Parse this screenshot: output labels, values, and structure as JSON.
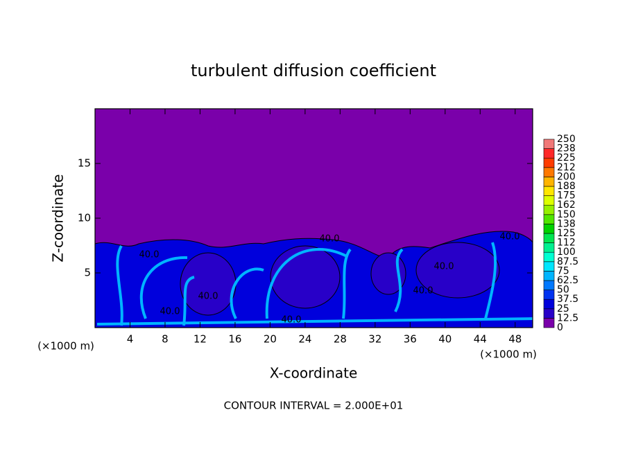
{
  "chart_data": {
    "type": "contour",
    "title": "turbulent diffusion coefficient",
    "xlabel": "X-coordinate",
    "ylabel": "Z-coordinate",
    "x_unit_label": "(×1000 m)",
    "y_unit_label": "(×1000 m)",
    "footer": "CONTOUR INTERVAL = 2.000E+01",
    "xlim": [
      0,
      50
    ],
    "ylim": [
      0,
      20
    ],
    "xticks": [
      4,
      8,
      12,
      16,
      20,
      24,
      28,
      32,
      36,
      40,
      44,
      48
    ],
    "yticks": [
      5,
      10,
      15
    ],
    "contour_labels": [
      "40.0",
      "40.0",
      "40.0",
      "40.0",
      "40.0",
      "40.0",
      "40.0",
      "40.0"
    ],
    "colorbar": {
      "lim": [
        0,
        250
      ],
      "ticks": [
        0,
        12.5,
        25,
        37.5,
        50,
        62.5,
        75,
        87.5,
        100,
        {
          "value": 112.5,
          "label": "112"
        },
        125,
        {
          "value": 137.5,
          "label": "138"
        },
        150,
        {
          "value": 162.5,
          "label": "162"
        },
        175,
        {
          "value": 187.5,
          "label": "188"
        },
        200,
        {
          "value": 212.5,
          "label": "212"
        },
        225,
        {
          "value": 237.5,
          "label": "238"
        },
        250
      ],
      "colors": [
        "#7a00aa",
        "#2800c8",
        "#0000dc",
        "#0032f0",
        "#0078ff",
        "#00b4ff",
        "#00e6ff",
        "#00ffd2",
        "#00f090",
        "#00e650",
        "#00d200",
        "#50e600",
        "#96f000",
        "#dcff00",
        "#ffe600",
        "#ffb400",
        "#ff7800",
        "#ff3c00",
        "#ff2828",
        "#f07878"
      ]
    }
  }
}
